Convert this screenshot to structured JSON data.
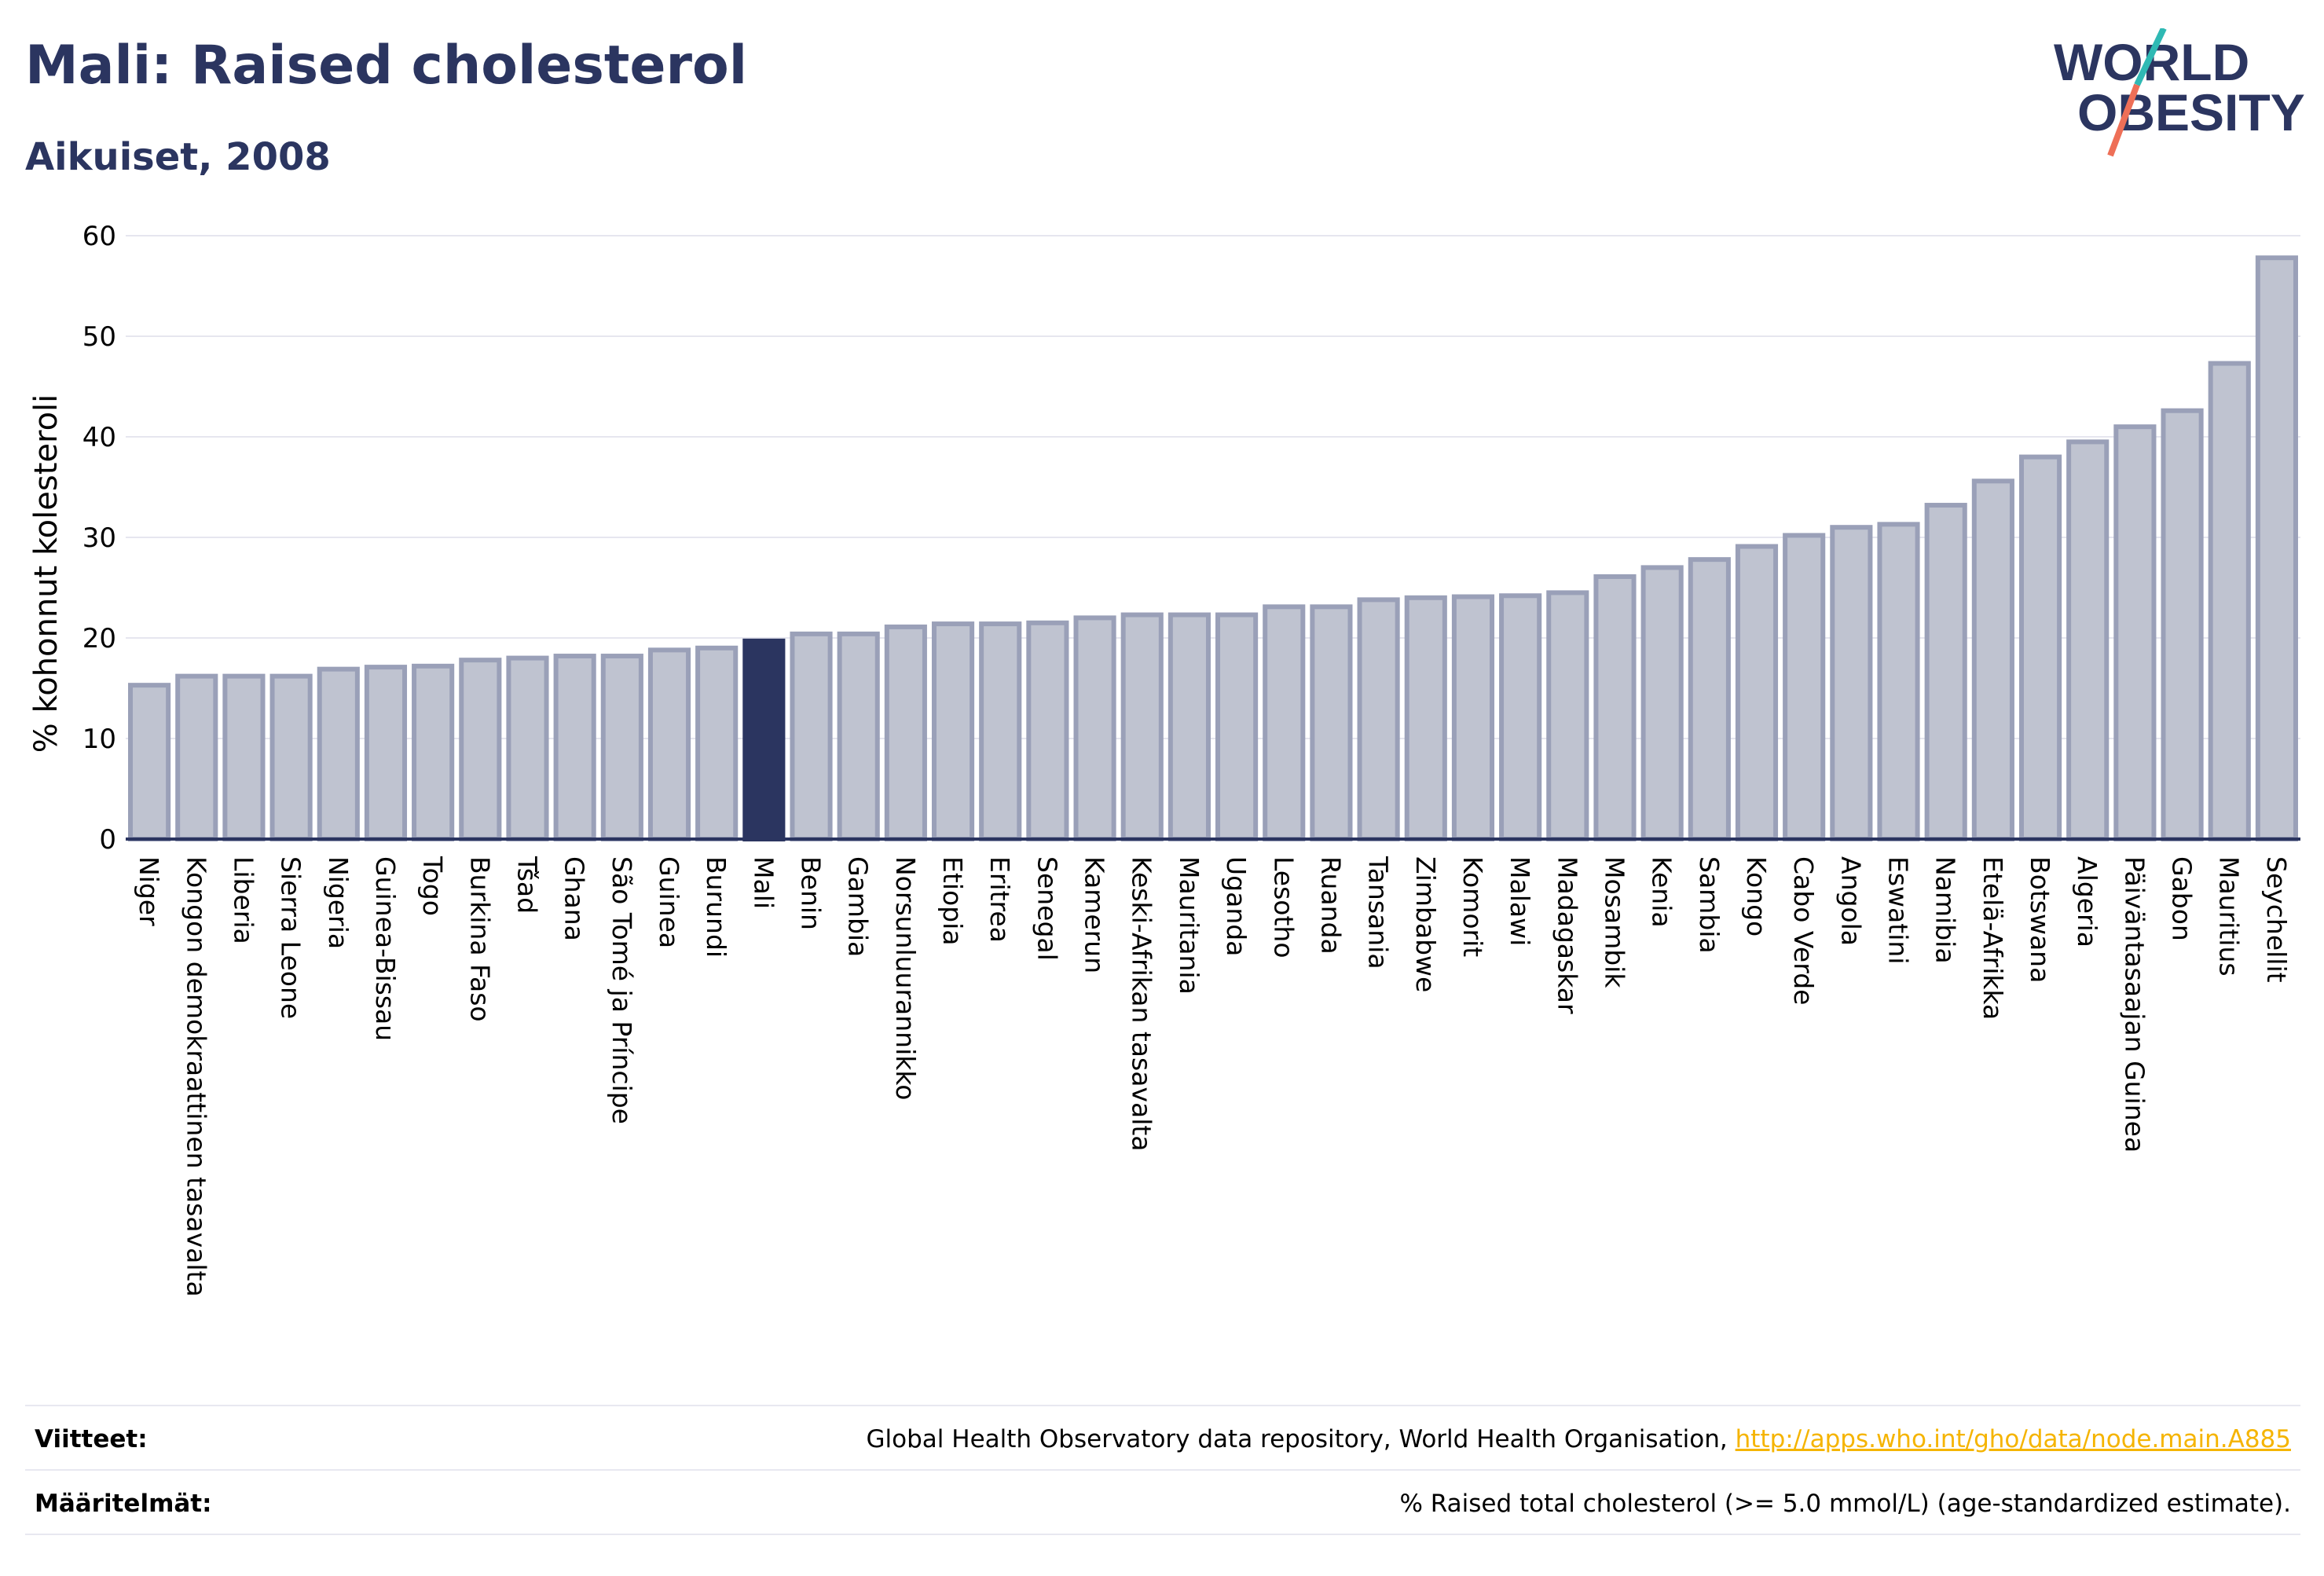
{
  "header": {
    "title": "Mali: Raised cholesterol",
    "subtitle": "Aikuiset, 2008",
    "logo_line1": "WORLD",
    "logo_line2": "OBESITY"
  },
  "chart_data": {
    "type": "bar",
    "ylabel": "% kohonnut kolesteroli",
    "ylim": [
      0,
      60
    ],
    "yticks": [
      0,
      10,
      20,
      30,
      40,
      50,
      60
    ],
    "grid": true,
    "highlight": "Mali",
    "categories": [
      "Niger",
      "Kongon demokraattinen tasavalta",
      "Liberia",
      "Sierra Leone",
      "Nigeria",
      "Guinea-Bissau",
      "Togo",
      "Burkina Faso",
      "Tšad",
      "Ghana",
      "São Tomé ja Príncipe",
      "Guinea",
      "Burundi",
      "Mali",
      "Benin",
      "Gambia",
      "Norsunluurannikko",
      "Etiopia",
      "Eritrea",
      "Senegal",
      "Kamerun",
      "Keski-Afrikan tasavalta",
      "Mauritania",
      "Uganda",
      "Lesotho",
      "Ruanda",
      "Tansania",
      "Zimbabwe",
      "Komorit",
      "Malawi",
      "Madagaskar",
      "Mosambik",
      "Kenia",
      "Sambia",
      "Kongo",
      "Cabo Verde",
      "Angola",
      "Eswatini",
      "Namibia",
      "Etelä-Afrikka",
      "Botswana",
      "Algeria",
      "Päiväntasaajan Guinea",
      "Gabon",
      "Mauritius",
      "Seychellit"
    ],
    "values": [
      15.3,
      16.2,
      16.2,
      16.2,
      16.9,
      17.1,
      17.2,
      17.8,
      18.0,
      18.2,
      18.2,
      18.8,
      19.0,
      19.7,
      20.4,
      20.4,
      21.1,
      21.4,
      21.4,
      21.5,
      22.0,
      22.3,
      22.3,
      22.3,
      23.1,
      23.1,
      23.8,
      24.0,
      24.1,
      24.2,
      24.5,
      26.1,
      27.0,
      27.8,
      29.1,
      30.2,
      31.0,
      31.3,
      33.2,
      35.6,
      38.0,
      39.5,
      41.0,
      42.6,
      47.3,
      57.8
    ],
    "colors": {
      "bar": "#bfc3d0",
      "bar_edge": "#9aa0b8",
      "highlight": "#2b3560",
      "grid": "#e6e6ef",
      "axis": "#2b3560"
    }
  },
  "footer": {
    "sources_label": "Viitteet:",
    "sources_text": "Global Health Observatory data repository, World Health Organisation, ",
    "sources_link": "http://apps.who.int/gho/data/node.main.A885",
    "definitions_label": "Määritelmät:",
    "definitions_text": "% Raised total cholesterol (>= 5.0 mmol/L) (age-standardized estimate)."
  }
}
